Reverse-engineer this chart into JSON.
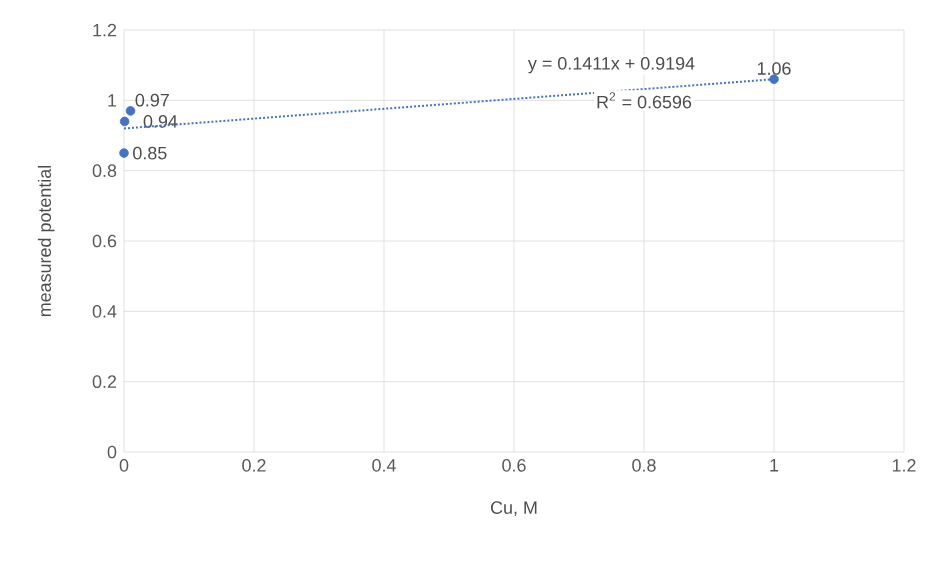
{
  "chart_data": {
    "type": "scatter",
    "xlabel": "Cu, M",
    "ylabel": "measured potential",
    "xlim": [
      0,
      1.2
    ],
    "ylim": [
      0,
      1.2
    ],
    "xticks": [
      0,
      0.2,
      0.4,
      0.6,
      0.8,
      1,
      1.2
    ],
    "yticks": [
      0,
      0.2,
      0.4,
      0.6,
      0.8,
      1,
      1.2
    ],
    "grid": true,
    "marker": "circle",
    "series": [
      {
        "color": "#4472c4",
        "x": [
          0,
          0.001,
          0.01,
          1
        ],
        "values": [
          0.85,
          0.94,
          0.97,
          1.06
        ],
        "value_labels": [
          "0.85",
          "0.94",
          "0.97",
          "1.06"
        ]
      },
      {
        "type": "line",
        "color": "#4472c4",
        "line_style": "dotted",
        "marker": "none",
        "x": [
          0,
          1
        ],
        "values": [
          0.92,
          1.06
        ]
      }
    ],
    "annotations": [
      "y = 0.1411x + 0.9194",
      "R$^{2}$ = 0.6596"
    ]
  }
}
